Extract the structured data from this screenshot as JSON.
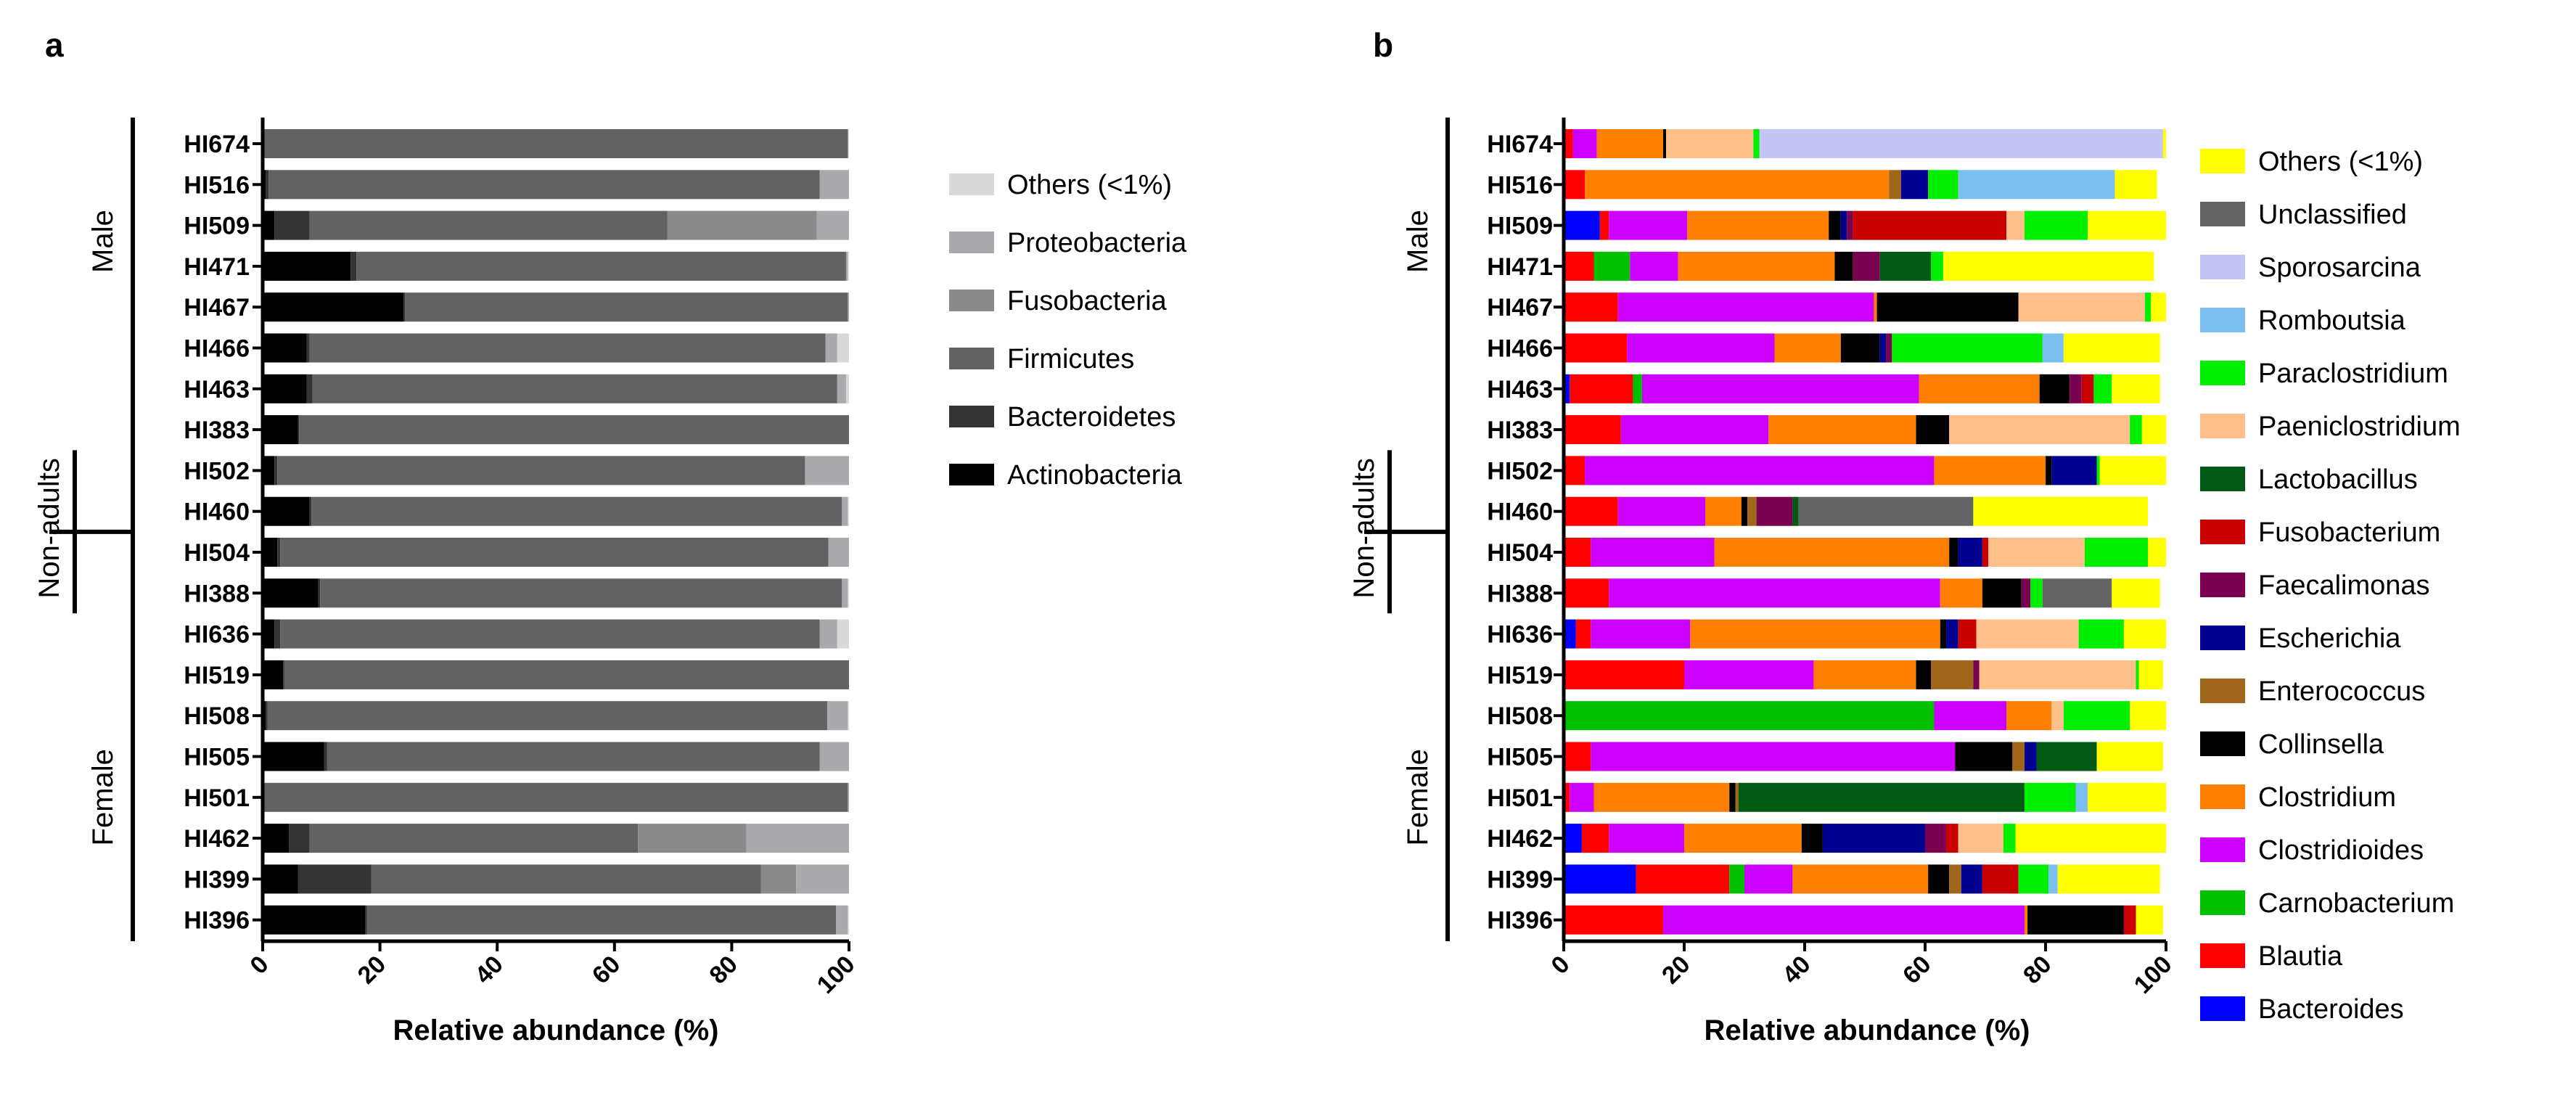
{
  "chart_data": [
    {
      "panel_label": "a",
      "type": "bar",
      "orientation": "horizontal",
      "stacked": true,
      "xlabel": "Relative abundance (%)",
      "xlim": [
        0,
        100
      ],
      "xticks": [
        "0",
        "20",
        "40",
        "60",
        "80",
        "100"
      ],
      "categories": [
        "HI674",
        "HI516",
        "HI509",
        "HI471",
        "HI467",
        "HI466",
        "HI463",
        "HI383",
        "HI502",
        "HI460",
        "HI504",
        "HI388",
        "HI636",
        "HI519",
        "HI508",
        "HI505",
        "HI501",
        "HI462",
        "HI399",
        "HI396"
      ],
      "group_labels": {
        "male": "Male",
        "non_adults": "Non-adults",
        "female": "Female"
      },
      "legend": [
        "Others (<1%)",
        "Proteobacteria",
        "Fusobacteria",
        "Firmicutes",
        "Bacteroidetes",
        "Actinobacteria"
      ],
      "colors": {
        "Actinobacteria": "#000000",
        "Bacteroidetes": "#333333",
        "Firmicutes": "#626262",
        "Fusobacteria": "#8a8a8a",
        "Proteobacteria": "#a9a9ae",
        "Others (<1%)": "#d9d9d9"
      },
      "series": [
        {
          "name": "Actinobacteria",
          "values": [
            0.2,
            0.5,
            2,
            15,
            24,
            7.5,
            7.5,
            6,
            2,
            8,
            2.5,
            9.5,
            2,
            3.5,
            0.5,
            10.5,
            0.2,
            4.5,
            6,
            17.5
          ]
        },
        {
          "name": "Bacteroidetes",
          "values": [
            0.1,
            0.5,
            6,
            1,
            0.3,
            0.5,
            1,
            0.2,
            0.5,
            0.3,
            0.5,
            0.3,
            1,
            0.2,
            0.3,
            0.5,
            0.1,
            3.5,
            12.5,
            0.3
          ]
        },
        {
          "name": "Firmicutes",
          "values": [
            99.5,
            94,
            61,
            83.5,
            75.5,
            88,
            89.5,
            93.8,
            90,
            90.5,
            93.5,
            89,
            92,
            96.3,
            95.5,
            84,
            99.5,
            56,
            66.5,
            80
          ]
        },
        {
          "name": "Fusobacteria",
          "values": [
            0,
            0,
            25.5,
            0,
            0,
            0,
            0,
            0,
            0,
            0,
            0,
            0,
            0,
            0,
            0,
            0,
            0,
            18.5,
            6,
            0
          ]
        },
        {
          "name": "Proteobacteria",
          "values": [
            0.1,
            5,
            5.5,
            0.3,
            0.2,
            2,
            1.5,
            0,
            7.5,
            1,
            3.5,
            1,
            3,
            0,
            3.5,
            5,
            0.2,
            17.5,
            9,
            2
          ]
        },
        {
          "name": "Others (<1%)",
          "values": [
            0.1,
            0,
            0,
            0.2,
            0,
            2,
            0.5,
            0,
            0,
            0.2,
            0,
            0.2,
            2,
            0,
            0.2,
            0,
            0,
            0,
            0,
            0.2
          ]
        }
      ]
    },
    {
      "panel_label": "b",
      "type": "bar",
      "orientation": "horizontal",
      "stacked": true,
      "xlabel": "Relative abundance (%)",
      "xlim": [
        0,
        100
      ],
      "xticks": [
        "0",
        "20",
        "40",
        "60",
        "80",
        "100"
      ],
      "categories": [
        "HI674",
        "HI516",
        "HI509",
        "HI471",
        "HI467",
        "HI466",
        "HI463",
        "HI383",
        "HI502",
        "HI460",
        "HI504",
        "HI388",
        "HI636",
        "HI519",
        "HI508",
        "HI505",
        "HI501",
        "HI462",
        "HI399",
        "HI396"
      ],
      "group_labels": {
        "male": "Male",
        "non_adults": "Non-adults",
        "female": "Female"
      },
      "legend": [
        "Others (<1%)",
        "Unclassified",
        "Sporosarcina",
        "Romboutsia",
        "Paraclostridium",
        "Paeniclostridium",
        "Lactobacillus",
        "Fusobacterium",
        "Faecalimonas",
        "Escherichia",
        "Enterococcus",
        "Collinsella",
        "Clostridium",
        "Clostridioides",
        "Carnobacterium",
        "Blautia",
        "Bacteroides"
      ],
      "colors": {
        "Bacteroides": "#0000ff",
        "Blautia": "#ff0000",
        "Carnobacterium": "#00c000",
        "Clostridioides": "#cc00ff",
        "Clostridium": "#ff8000",
        "Collinsella": "#000000",
        "Enterococcus": "#a0661a",
        "Escherichia": "#000090",
        "Faecalimonas": "#7a0050",
        "Fusobacterium": "#c80000",
        "Lactobacillus": "#005a14",
        "Paeniclostridium": "#ffbf8a",
        "Paraclostridium": "#00ee00",
        "Romboutsia": "#7abff0",
        "Sporosarcina": "#c4c4f5",
        "Unclassified": "#646464",
        "Others (<1%)": "#ffff00"
      },
      "series": [
        {
          "name": "Bacteroides",
          "values": [
            0,
            0,
            6,
            0,
            0,
            0,
            1,
            0,
            0,
            0,
            0,
            0,
            2,
            0,
            0,
            0,
            0,
            3,
            12,
            0
          ]
        },
        {
          "name": "Blautia",
          "values": [
            1.5,
            3.5,
            1.5,
            5,
            9,
            10.5,
            10.5,
            9.5,
            3.5,
            9,
            4.5,
            7.5,
            2.5,
            20,
            0,
            4.5,
            1,
            4.5,
            15.5,
            16.5
          ]
        },
        {
          "name": "Carnobacterium",
          "values": [
            0,
            0,
            0,
            6,
            0,
            0,
            1.5,
            0,
            0,
            0,
            0,
            0,
            0,
            0,
            61.5,
            0,
            0,
            0,
            2.5,
            0
          ]
        },
        {
          "name": "Clostridioides",
          "values": [
            4,
            0,
            13,
            8,
            42.5,
            24.5,
            46,
            24.5,
            58,
            14.5,
            20.5,
            55,
            16.5,
            21.5,
            12,
            60.5,
            4,
            12.5,
            8,
            60
          ]
        },
        {
          "name": "Clostridium",
          "values": [
            11,
            50.5,
            23.5,
            26,
            0.5,
            11,
            20,
            24.5,
            18.5,
            6,
            39,
            7,
            41.5,
            17,
            7.5,
            0,
            22.5,
            19.5,
            22.5,
            0.5
          ]
        },
        {
          "name": "Collinsella",
          "values": [
            0.5,
            0,
            2,
            3,
            23.5,
            6.5,
            5,
            5.5,
            1,
            1,
            1.5,
            6.5,
            1,
            2.5,
            0,
            9.5,
            1,
            3.5,
            3.5,
            16
          ]
        },
        {
          "name": "Enterococcus",
          "values": [
            0,
            2,
            0,
            0,
            0,
            0,
            0,
            0,
            0,
            1.5,
            0,
            0,
            0,
            7,
            0,
            2,
            0.5,
            0,
            2,
            0
          ]
        },
        {
          "name": "Escherichia",
          "values": [
            0,
            4.5,
            1,
            0,
            0,
            1,
            0,
            0,
            7.5,
            0,
            4,
            0,
            2,
            0,
            0,
            2,
            0,
            17,
            3.5,
            0
          ]
        },
        {
          "name": "Faecalimonas",
          "values": [
            0,
            0,
            1,
            4.5,
            0,
            1,
            2,
            0,
            0,
            6,
            0,
            1.5,
            0,
            1,
            0,
            0,
            0,
            3.5,
            0,
            0
          ]
        },
        {
          "name": "Fusobacterium",
          "values": [
            0,
            0,
            25.5,
            0,
            0,
            0,
            2,
            0,
            0,
            0,
            1,
            0,
            3,
            0,
            0,
            0,
            0,
            2,
            6,
            2
          ]
        },
        {
          "name": "Lactobacillus",
          "values": [
            0,
            0,
            0,
            8.5,
            0,
            0,
            0,
            0,
            0,
            1,
            0,
            0,
            0,
            0,
            0,
            10,
            47.5,
            0,
            0,
            0
          ]
        },
        {
          "name": "Paeniclostridium",
          "values": [
            14.5,
            0,
            3,
            0,
            21,
            0,
            0,
            30,
            0,
            0,
            16,
            0,
            17,
            26,
            2,
            0,
            0,
            7.5,
            0,
            0
          ]
        },
        {
          "name": "Paraclostridium",
          "values": [
            1,
            5,
            10.5,
            2,
            1,
            25,
            3,
            2,
            0.5,
            0,
            10.5,
            2,
            7.5,
            0.5,
            11,
            0,
            8.5,
            2,
            5,
            0
          ]
        },
        {
          "name": "Romboutsia",
          "values": [
            0,
            26,
            0,
            0,
            0,
            3.5,
            0,
            0,
            0,
            0,
            0,
            0,
            0,
            0,
            0,
            0,
            2,
            0,
            1.5,
            0
          ]
        },
        {
          "name": "Sporosarcina",
          "values": [
            67,
            0,
            0,
            0,
            0,
            0,
            0,
            0,
            0,
            0,
            0,
            0,
            0,
            0,
            0,
            0,
            0,
            0,
            0,
            0
          ]
        },
        {
          "name": "Unclassified",
          "values": [
            0,
            0,
            0,
            0,
            0,
            0,
            0,
            0,
            0,
            29,
            0,
            11.5,
            0,
            0,
            0,
            0,
            0,
            0,
            0,
            0
          ]
        },
        {
          "name": "Others (<1%)",
          "values": [
            0.5,
            7,
            13,
            35,
            2.5,
            16,
            8,
            4,
            11,
            29,
            3,
            8,
            7.5,
            4,
            6,
            11,
            13,
            25,
            17,
            4.5
          ]
        }
      ]
    }
  ]
}
